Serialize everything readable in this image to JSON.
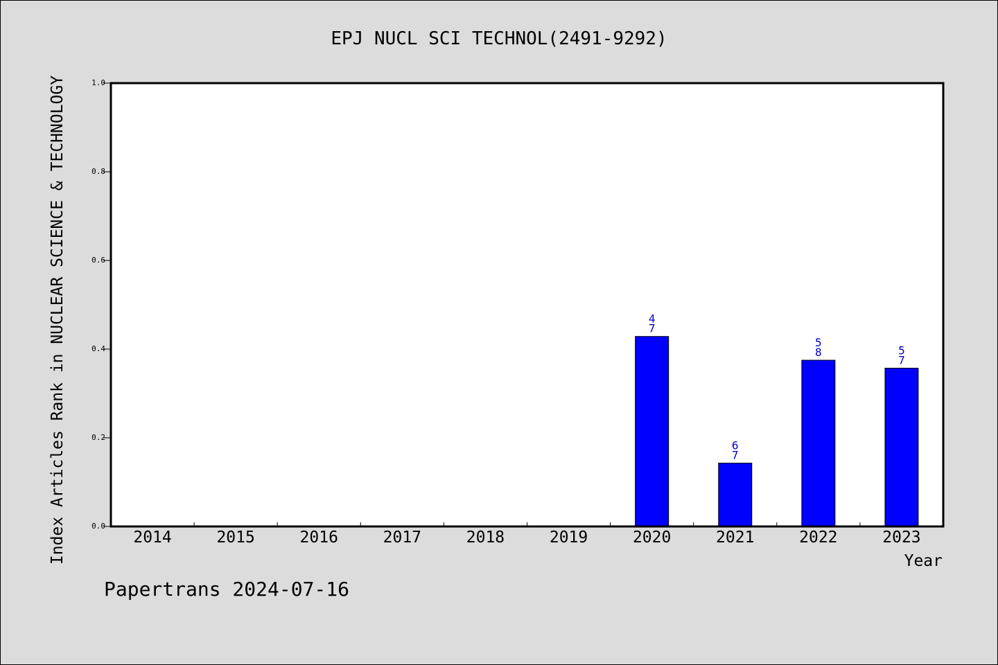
{
  "chart_data": {
    "type": "bar",
    "title": "EPJ NUCL SCI TECHNOL(2491-9292)",
    "xlabel": "Year",
    "ylabel": "Index Articles Rank in NUCLEAR SCIENCE & TECHNOLOGY",
    "ylim": [
      0,
      1.0
    ],
    "yticks": [
      "0.0",
      "0.2",
      "0.4",
      "0.6",
      "0.8",
      "1.0"
    ],
    "categories": [
      "2014",
      "2015",
      "2016",
      "2017",
      "2018",
      "2019",
      "2020",
      "2021",
      "2022",
      "2023"
    ],
    "values": [
      null,
      null,
      null,
      null,
      null,
      null,
      0.4286,
      0.1429,
      0.375,
      0.3571
    ],
    "data_labels": [
      null,
      null,
      null,
      null,
      null,
      null,
      {
        "numerator": "4",
        "denominator": "7"
      },
      {
        "numerator": "6",
        "denominator": "7"
      },
      {
        "numerator": "5",
        "denominator": "8"
      },
      {
        "numerator": "5",
        "denominator": "7"
      }
    ],
    "bar_color": "#0000ff",
    "label_color": "#0000cc",
    "background_color": "#dcdcdc",
    "plot_background": "#ffffff",
    "grid": false,
    "legend": "none"
  },
  "footer": {
    "text": "Papertrans 2024-07-16"
  }
}
